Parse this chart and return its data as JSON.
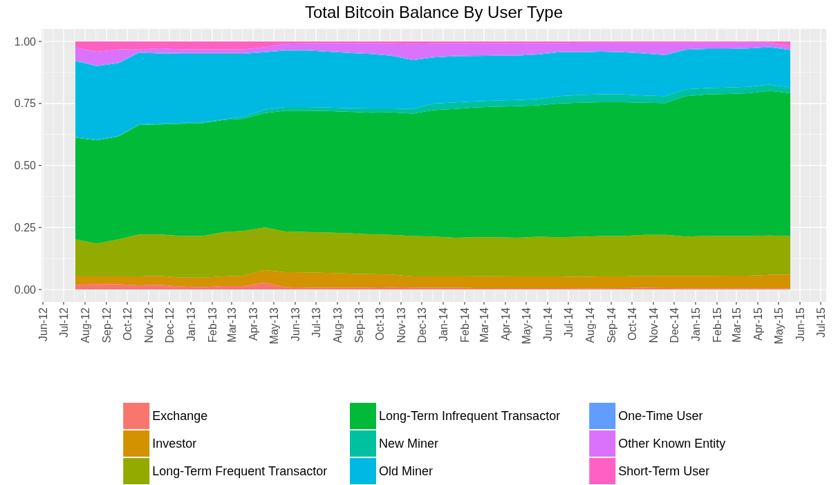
{
  "chart_data": {
    "type": "area",
    "title": "Total Bitcoin Balance By User Type",
    "stacked": true,
    "grid": true,
    "legend": "bottom",
    "x": [
      "2012-07-18",
      "2012-08-18",
      "2012-09-18",
      "2012-10-18",
      "2012-11-18",
      "2012-12-18",
      "2013-01-18",
      "2013-02-18",
      "2013-03-18",
      "2013-04-18",
      "2013-05-18",
      "2013-06-18",
      "2013-07-18",
      "2013-08-18",
      "2013-09-18",
      "2013-10-18",
      "2013-11-18",
      "2013-12-18",
      "2014-01-18",
      "2014-02-18",
      "2014-03-18",
      "2014-04-18",
      "2014-05-18",
      "2014-06-18",
      "2014-07-18",
      "2014-08-18",
      "2014-09-18",
      "2014-10-18",
      "2014-11-18",
      "2014-12-18",
      "2015-01-18",
      "2015-02-18",
      "2015-03-18",
      "2015-04-18",
      "2015-05-18"
    ],
    "xlim": [
      "2012-05-30",
      "2015-07-09"
    ],
    "xticks": [
      {
        "value": "2012-06",
        "label": "Jun-12"
      },
      {
        "value": "2012-07",
        "label": "Jul-12"
      },
      {
        "value": "2012-08",
        "label": "Aug-12"
      },
      {
        "value": "2012-09",
        "label": "Sep-12"
      },
      {
        "value": "2012-10",
        "label": "Oct-12"
      },
      {
        "value": "2012-11",
        "label": "Nov-12"
      },
      {
        "value": "2012-12",
        "label": "Dec-12"
      },
      {
        "value": "2013-01",
        "label": "Jan-13"
      },
      {
        "value": "2013-02",
        "label": "Feb-13"
      },
      {
        "value": "2013-03",
        "label": "Mar-13"
      },
      {
        "value": "2013-04",
        "label": "Apr-13"
      },
      {
        "value": "2013-05",
        "label": "May-13"
      },
      {
        "value": "2013-06",
        "label": "Jun-13"
      },
      {
        "value": "2013-07",
        "label": "Jul-13"
      },
      {
        "value": "2013-08",
        "label": "Aug-13"
      },
      {
        "value": "2013-09",
        "label": "Sep-13"
      },
      {
        "value": "2013-10",
        "label": "Oct-13"
      },
      {
        "value": "2013-11",
        "label": "Nov-13"
      },
      {
        "value": "2013-12",
        "label": "Dec-13"
      },
      {
        "value": "2014-01",
        "label": "Jan-14"
      },
      {
        "value": "2014-02",
        "label": "Feb-14"
      },
      {
        "value": "2014-03",
        "label": "Mar-14"
      },
      {
        "value": "2014-04",
        "label": "Apr-14"
      },
      {
        "value": "2014-05",
        "label": "May-14"
      },
      {
        "value": "2014-06",
        "label": "Jun-14"
      },
      {
        "value": "2014-07",
        "label": "Jul-14"
      },
      {
        "value": "2014-08",
        "label": "Aug-14"
      },
      {
        "value": "2014-09",
        "label": "Sep-14"
      },
      {
        "value": "2014-10",
        "label": "Oct-14"
      },
      {
        "value": "2014-11",
        "label": "Nov-14"
      },
      {
        "value": "2014-12",
        "label": "Dec-14"
      },
      {
        "value": "2015-01",
        "label": "Jan-15"
      },
      {
        "value": "2015-02",
        "label": "Feb-15"
      },
      {
        "value": "2015-03",
        "label": "Mar-15"
      },
      {
        "value": "2015-04",
        "label": "Apr-15"
      },
      {
        "value": "2015-05",
        "label": "May-15"
      },
      {
        "value": "2015-06",
        "label": "Jun-15"
      },
      {
        "value": "2015-07",
        "label": "Jul-15"
      }
    ],
    "ylim": [
      -0.05,
      1.05
    ],
    "yticks": [
      {
        "value": 0,
        "label": "0.00"
      },
      {
        "value": 0.25,
        "label": "0.25"
      },
      {
        "value": 0.5,
        "label": "0.50"
      },
      {
        "value": 0.75,
        "label": "0.75"
      },
      {
        "value": 1,
        "label": "1.00"
      }
    ],
    "series": [
      {
        "name": "Exchange",
        "color": "#f8766d",
        "values": [
          0.018,
          0.022,
          0.021,
          0.017,
          0.019,
          0.012,
          0.01,
          0.014,
          0.014,
          0.028,
          0.009,
          0.008,
          0.007,
          0.007,
          0.008,
          0.009,
          0.008,
          0.007,
          0.007,
          0.006,
          0.006,
          0.006,
          0.006,
          0.006,
          0.005,
          0.005,
          0.006,
          0.007,
          0.006,
          0.005,
          0.005,
          0.005,
          0.005,
          0.005,
          0.005
        ]
      },
      {
        "name": "Investor",
        "color": "#d39200",
        "values": [
          0.035,
          0.031,
          0.032,
          0.036,
          0.036,
          0.036,
          0.038,
          0.039,
          0.042,
          0.05,
          0.061,
          0.061,
          0.06,
          0.057,
          0.054,
          0.052,
          0.045,
          0.046,
          0.046,
          0.048,
          0.048,
          0.047,
          0.047,
          0.047,
          0.046,
          0.048,
          0.047,
          0.048,
          0.049,
          0.05,
          0.05,
          0.051,
          0.051,
          0.054,
          0.056
        ]
      },
      {
        "name": "Long-Term Frequent Transactor",
        "color": "#93aa00",
        "values": [
          0.149,
          0.132,
          0.149,
          0.169,
          0.167,
          0.168,
          0.168,
          0.179,
          0.18,
          0.172,
          0.164,
          0.163,
          0.163,
          0.163,
          0.161,
          0.16,
          0.163,
          0.161,
          0.156,
          0.157,
          0.157,
          0.156,
          0.16,
          0.158,
          0.162,
          0.163,
          0.163,
          0.166,
          0.166,
          0.159,
          0.161,
          0.16,
          0.16,
          0.159,
          0.155
        ]
      },
      {
        "name": "Long-Term Infrequent Transactor",
        "color": "#00ba38",
        "values": [
          0.41,
          0.416,
          0.414,
          0.441,
          0.443,
          0.452,
          0.454,
          0.452,
          0.452,
          0.461,
          0.487,
          0.489,
          0.489,
          0.489,
          0.489,
          0.493,
          0.493,
          0.509,
          0.519,
          0.523,
          0.526,
          0.53,
          0.529,
          0.539,
          0.54,
          0.539,
          0.539,
          0.532,
          0.53,
          0.565,
          0.57,
          0.572,
          0.575,
          0.583,
          0.575
        ]
      },
      {
        "name": "New Miner",
        "color": "#00c19f",
        "values": [
          0.003,
          0.003,
          0.003,
          0.003,
          0.004,
          0.004,
          0.005,
          0.002,
          0.008,
          0.014,
          0.014,
          0.014,
          0.014,
          0.015,
          0.018,
          0.016,
          0.019,
          0.026,
          0.026,
          0.024,
          0.025,
          0.025,
          0.026,
          0.029,
          0.031,
          0.032,
          0.031,
          0.029,
          0.028,
          0.028,
          0.026,
          0.026,
          0.026,
          0.025,
          0.024
        ]
      },
      {
        "name": "Old Miner",
        "color": "#00b9e3",
        "values": [
          0.306,
          0.296,
          0.293,
          0.288,
          0.282,
          0.278,
          0.275,
          0.264,
          0.254,
          0.231,
          0.228,
          0.228,
          0.225,
          0.222,
          0.219,
          0.212,
          0.196,
          0.186,
          0.186,
          0.183,
          0.18,
          0.178,
          0.179,
          0.177,
          0.172,
          0.171,
          0.17,
          0.169,
          0.166,
          0.159,
          0.157,
          0.155,
          0.154,
          0.15,
          0.15
        ]
      },
      {
        "name": "One-Time User",
        "color": "#619cff",
        "values": [
          0.003,
          0.003,
          0.003,
          0.003,
          0.003,
          0.003,
          0.003,
          0.003,
          0.003,
          0.003,
          0.003,
          0.003,
          0.003,
          0.003,
          0.003,
          0.003,
          0.003,
          0.003,
          0.003,
          0.003,
          0.003,
          0.003,
          0.003,
          0.003,
          0.003,
          0.003,
          0.003,
          0.003,
          0.003,
          0.003,
          0.003,
          0.003,
          0.003,
          0.003,
          0.003
        ]
      },
      {
        "name": "Other Known Entity",
        "color": "#db72fb",
        "values": [
          0.051,
          0.055,
          0.053,
          0.011,
          0.018,
          0.015,
          0.015,
          0.015,
          0.015,
          0.018,
          0.025,
          0.027,
          0.032,
          0.037,
          0.041,
          0.048,
          0.063,
          0.055,
          0.05,
          0.049,
          0.048,
          0.048,
          0.043,
          0.034,
          0.036,
          0.034,
          0.036,
          0.041,
          0.047,
          0.026,
          0.023,
          0.023,
          0.021,
          0.016,
          0.014
        ]
      },
      {
        "name": "Short-Term User",
        "color": "#ff61c3",
        "values": [
          0.025,
          0.042,
          0.032,
          0.032,
          0.028,
          0.032,
          0.032,
          0.032,
          0.032,
          0.023,
          0.009,
          0.007,
          0.007,
          0.007,
          0.007,
          0.007,
          0.01,
          0.007,
          0.007,
          0.007,
          0.007,
          0.007,
          0.007,
          0.007,
          0.005,
          0.005,
          0.005,
          0.005,
          0.005,
          0.005,
          0.005,
          0.005,
          0.005,
          0.005,
          0.018
        ]
      }
    ]
  }
}
